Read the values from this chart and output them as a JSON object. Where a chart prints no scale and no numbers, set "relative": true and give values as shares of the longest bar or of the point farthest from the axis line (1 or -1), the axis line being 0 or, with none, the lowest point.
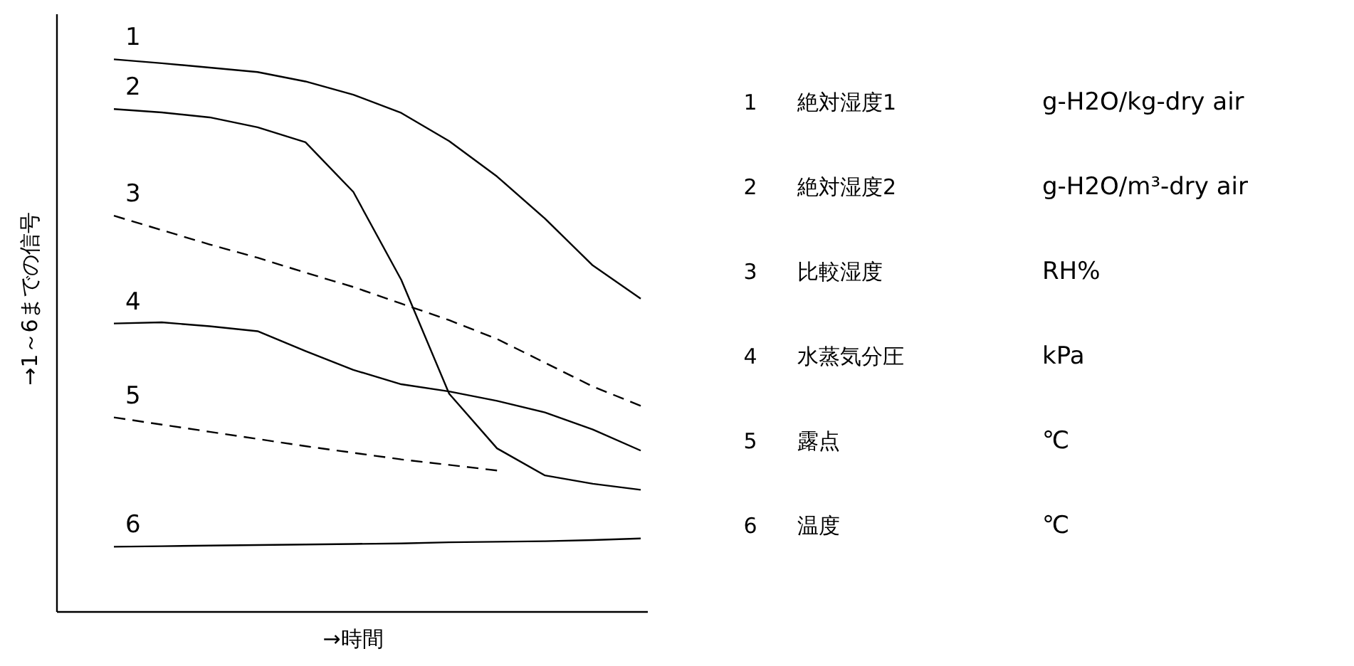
{
  "chart_data": {
    "type": "line",
    "relative": true,
    "xlabel": "→時間",
    "ylabel": "→1～6までの信号",
    "grid": false,
    "marker": "none",
    "categories": [
      null,
      null,
      null,
      null,
      null,
      null,
      null,
      null,
      null,
      null,
      null,
      null
    ],
    "series": [
      {
        "name": "1",
        "color": "#000000",
        "line_style": "solid",
        "values": [
          1.0,
          0.993,
          0.985,
          0.977,
          0.96,
          0.936,
          0.903,
          0.852,
          0.788,
          0.712,
          0.627,
          0.567
        ]
      },
      {
        "name": "2",
        "color": "#000000",
        "line_style": "solid",
        "values": [
          0.91,
          0.904,
          0.895,
          0.877,
          0.85,
          0.76,
          0.601,
          0.395,
          0.296,
          0.247,
          0.232,
          0.221
        ]
      },
      {
        "name": "3",
        "color": "#000000",
        "line_style": "dashed",
        "values": [
          0.717,
          0.691,
          0.665,
          0.641,
          0.614,
          0.588,
          0.558,
          0.528,
          0.494,
          0.451,
          0.408,
          0.373
        ]
      },
      {
        "name": "4",
        "color": "#000000",
        "line_style": "solid",
        "values": [
          0.522,
          0.524,
          0.517,
          0.508,
          0.472,
          0.438,
          0.412,
          0.399,
          0.382,
          0.361,
          0.33,
          0.292
        ]
      },
      {
        "name": "5",
        "color": "#000000",
        "line_style": "dashed",
        "values": [
          0.352,
          0.339,
          0.326,
          0.313,
          0.3,
          0.288,
          0.276,
          0.266,
          0.256,
          null,
          null,
          null
        ]
      },
      {
        "name": "6",
        "color": "#000000",
        "line_style": "solid",
        "values": [
          0.118,
          0.119,
          0.12,
          0.121,
          0.122,
          0.123,
          0.124,
          0.126,
          0.127,
          0.128,
          0.13,
          0.133
        ]
      }
    ],
    "annotations": [
      "絶対湿度1",
      "絶対湿度2",
      "比較湿度",
      "水蒸気分圧",
      "露点",
      "温度",
      "g-H2O/kg-dry air",
      "g-H2O/m³-dry air",
      "RH%",
      "kPa",
      "℃",
      "℃"
    ]
  }
}
